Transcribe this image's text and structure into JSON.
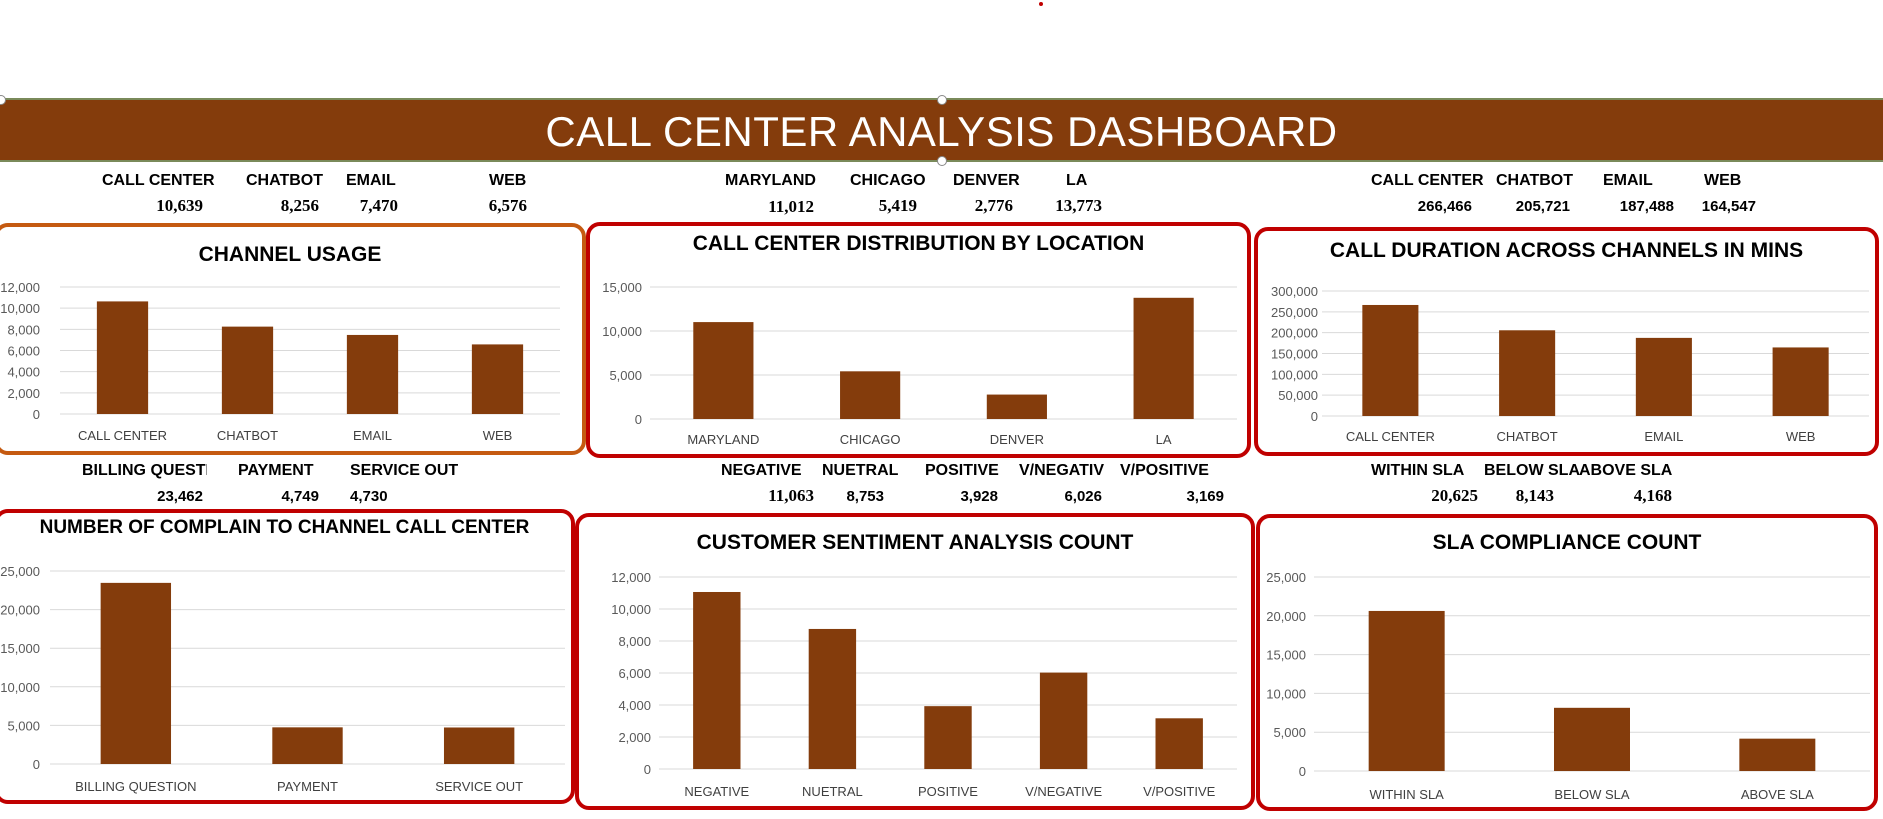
{
  "dashboard": {
    "title": "CALL CENTER ANALYSIS DASHBOARD"
  },
  "kpis": {
    "channel": {
      "labels": [
        "CALL CENTER",
        "CHATBOT",
        "EMAIL",
        "WEB"
      ],
      "values": [
        "10,639",
        "8,256",
        "7,470",
        "6,576"
      ]
    },
    "location": {
      "labels": [
        "MARYLAND",
        "CHICAGO",
        "DENVER",
        "LA"
      ],
      "values": [
        "11,012",
        "5,419",
        "2,776",
        "13,773"
      ]
    },
    "duration": {
      "labels": [
        "CALL CENTER",
        "CHATBOT",
        "EMAIL",
        "WEB"
      ],
      "values": [
        "266,466",
        "205,721",
        "187,488",
        "164,547"
      ]
    },
    "complaint": {
      "labels": [
        "BILLING QUESTIC",
        "PAYMENT",
        "SERVICE OUT"
      ],
      "values": [
        "23,462",
        "4,749",
        "4,730"
      ]
    },
    "sentiment": {
      "labels": [
        "NEGATIVE",
        "NUETRAL",
        "POSITIVE",
        "V/NEGATIV",
        "V/POSITIVE"
      ],
      "values": [
        "11,063",
        "8,753",
        "3,928",
        "6,026",
        "3,169"
      ]
    },
    "sla": {
      "labels": [
        "WITHIN SLA",
        "BELOW SLA",
        "ABOVE SLA"
      ],
      "values": [
        "20,625",
        "8,143",
        "4,168"
      ]
    }
  },
  "chart_data": [
    {
      "id": "channel",
      "type": "bar",
      "title": "CHANNEL USAGE",
      "categories": [
        "CALL CENTER",
        "CHATBOT",
        "EMAIL",
        "WEB"
      ],
      "values": [
        10639,
        8256,
        7470,
        6576
      ],
      "ylim": [
        0,
        12000
      ],
      "yticks": [
        "0",
        "2,000",
        "4,000",
        "6,000",
        "8,000",
        "10,000",
        "12,000"
      ],
      "tick_values": [
        0,
        2000,
        4000,
        6000,
        8000,
        10000,
        12000
      ],
      "bar_color": "#843c0c",
      "grid": true
    },
    {
      "id": "location",
      "type": "bar",
      "title": "CALL CENTER DISTRIBUTION BY LOCATION",
      "categories": [
        "MARYLAND",
        "CHICAGO",
        "DENVER",
        "LA"
      ],
      "values": [
        11012,
        5419,
        2776,
        13773
      ],
      "ylim": [
        0,
        15000
      ],
      "yticks": [
        "0",
        "5,000",
        "10,000",
        "15,000"
      ],
      "tick_values": [
        0,
        5000,
        10000,
        15000
      ],
      "bar_color": "#843c0c",
      "grid": true
    },
    {
      "id": "duration",
      "type": "bar",
      "title": "CALL DURATION ACROSS CHANNELS IN MINS",
      "categories": [
        "CALL CENTER",
        "CHATBOT",
        "EMAIL",
        "WEB"
      ],
      "values": [
        266466,
        205721,
        187488,
        164547
      ],
      "ylim": [
        0,
        300000
      ],
      "yticks": [
        "0",
        "50,000",
        "100,000",
        "150,000",
        "200,000",
        "250,000",
        "300,000"
      ],
      "tick_values": [
        0,
        50000,
        100000,
        150000,
        200000,
        250000,
        300000
      ],
      "bar_color": "#843c0c",
      "grid": true
    },
    {
      "id": "complaint",
      "type": "bar",
      "title": "NUMBER OF COMPLAIN TO CHANNEL CALL CENTER",
      "categories": [
        "BILLING QUESTION",
        "PAYMENT",
        "SERVICE OUT"
      ],
      "values": [
        23462,
        4749,
        4730
      ],
      "ylim": [
        0,
        25000
      ],
      "yticks": [
        "0",
        "5,000",
        "10,000",
        "15,000",
        "20,000",
        "25,000"
      ],
      "tick_values": [
        0,
        5000,
        10000,
        15000,
        20000,
        25000
      ],
      "bar_color": "#843c0c",
      "grid": true
    },
    {
      "id": "sentiment",
      "type": "bar",
      "title": "CUSTOMER SENTIMENT ANALYSIS COUNT",
      "categories": [
        "NEGATIVE",
        "NUETRAL",
        "POSITIVE",
        "V/NEGATIVE",
        "V/POSITIVE"
      ],
      "values": [
        11063,
        8753,
        3928,
        6026,
        3169
      ],
      "ylim": [
        0,
        12000
      ],
      "yticks": [
        "0",
        "2,000",
        "4,000",
        "6,000",
        "8,000",
        "10,000",
        "12,000"
      ],
      "tick_values": [
        0,
        2000,
        4000,
        6000,
        8000,
        10000,
        12000
      ],
      "bar_color": "#843c0c",
      "grid": true
    },
    {
      "id": "sla",
      "type": "bar",
      "title": "SLA COMPLIANCE COUNT",
      "categories": [
        "WITHIN SLA",
        "BELOW SLA",
        "ABOVE SLA"
      ],
      "values": [
        20625,
        8143,
        4168
      ],
      "ylim": [
        0,
        25000
      ],
      "yticks": [
        "0",
        "5,000",
        "10,000",
        "15,000",
        "20,000",
        "25,000"
      ],
      "tick_values": [
        0,
        5000,
        10000,
        15000,
        20000,
        25000
      ],
      "bar_color": "#843c0c",
      "grid": true
    }
  ]
}
